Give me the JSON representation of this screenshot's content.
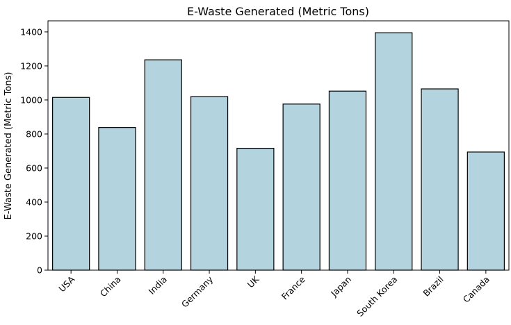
{
  "chart_data": {
    "type": "bar",
    "title": "E-Waste Generated (Metric Tons)",
    "xlabel": "",
    "ylabel": "E-Waste Generated (Metric Tons)",
    "categories": [
      "USA",
      "China",
      "India",
      "Germany",
      "UK",
      "France",
      "Japan",
      "South Korea",
      "Brazil",
      "Canada"
    ],
    "values": [
      1015,
      838,
      1236,
      1020,
      716,
      976,
      1052,
      1395,
      1065,
      694
    ],
    "ylim": [
      0,
      1465
    ],
    "yticks": [
      0,
      200,
      400,
      600,
      800,
      1000,
      1200,
      1400
    ],
    "grid": false,
    "bar_color": "#b3d4df",
    "edge_color": "#000000"
  }
}
